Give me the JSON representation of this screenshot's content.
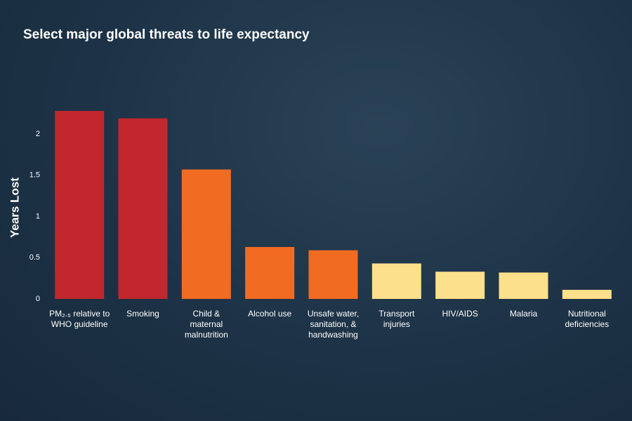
{
  "chart_data": {
    "type": "bar",
    "title": "Select major global threats to life expectancy",
    "y_label": "Years Lost",
    "categories": [
      "PM₂.₅ relative to WHO guideline",
      "Smoking",
      "Child & maternal malnutrition",
      "Alcohol use",
      "Unsafe water, sanitation, & handwashing",
      "Transport injuries",
      "HIV/AIDS",
      "Malaria",
      "Nutritional deficiencies"
    ],
    "values": [
      2.28,
      2.19,
      1.57,
      0.63,
      0.59,
      0.43,
      0.33,
      0.32,
      0.11
    ],
    "colors": [
      "#c1272d",
      "#c1272d",
      "#f26b22",
      "#f26b22",
      "#f26b22",
      "#fde08b",
      "#fde08b",
      "#fde08b",
      "#fde08b"
    ],
    "ylim": [
      0,
      2.4
    ],
    "yticks": [
      0,
      0.5,
      1,
      1.5,
      2
    ],
    "grid": false
  }
}
